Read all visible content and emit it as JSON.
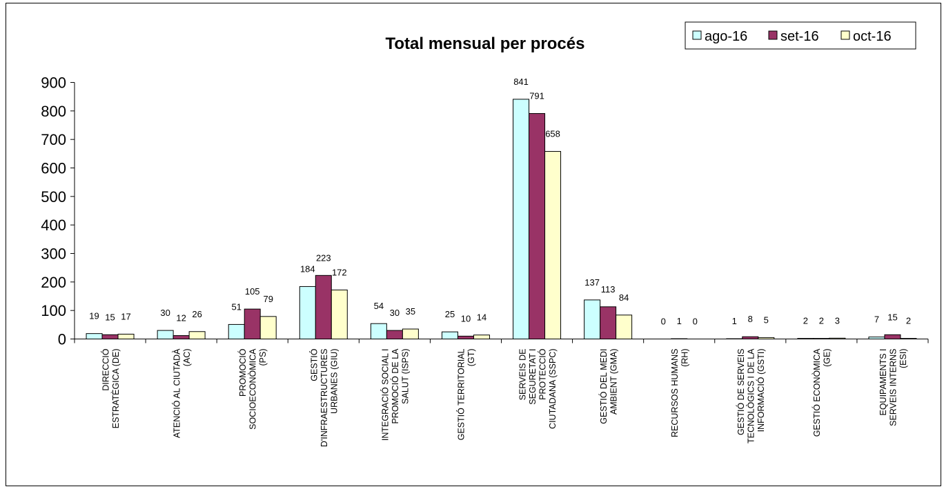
{
  "chart_data": {
    "type": "bar",
    "title": "Total mensual per procés",
    "ylim": [
      0,
      900
    ],
    "yticks": [
      0,
      100,
      200,
      300,
      400,
      500,
      600,
      700,
      800,
      900
    ],
    "grid": false,
    "legend_position": "top-right",
    "categories": [
      [
        "DIRECCIÓ",
        "ESTRATÈGICA (DE)"
      ],
      [
        "ATENCIÓ AL CIUTADÀ",
        "(AC)"
      ],
      [
        "PROMOCIÓ",
        "SOCIOECONÒMICA",
        "(PS)"
      ],
      [
        "GESTIÓ",
        "D'INFRAESTRUCTURES",
        "URBANES (GIU)"
      ],
      [
        "INTEGRACIÓ SOCIAL I",
        "PROMOCIÓ DE LA",
        "SALUT (ISPS)"
      ],
      [
        "GESTIÓ TERRITORIAL",
        "(GT)"
      ],
      [
        "SERVEIS DE",
        "SEGURETAT I",
        "PROTECCIÓ",
        "CIUTADANA (SSPC)"
      ],
      [
        "GESTIÓ DEL MEDI",
        "AMBIENT (GMA)"
      ],
      [
        "RECURSOS HUMANS",
        "(RH)"
      ],
      [
        "GESTIÓ DE SERVEIS",
        "TECNOLÒGICS I DE LA",
        "INFORMACIÓ (GSTI)"
      ],
      [
        "GESTIÓ ECONÒMICA",
        "(GE)"
      ],
      [
        "EQUIPAMENTS I",
        "SERVEIS INTERNS",
        "(ESI)"
      ]
    ],
    "series": [
      {
        "name": "ago-16",
        "color": "#ccffff",
        "values": [
          19,
          30,
          51,
          184,
          54,
          25,
          841,
          137,
          0,
          1,
          2,
          7
        ]
      },
      {
        "name": "set-16",
        "color": "#993366",
        "values": [
          15,
          12,
          105,
          223,
          30,
          10,
          791,
          113,
          1,
          8,
          2,
          15
        ]
      },
      {
        "name": "oct-16",
        "color": "#ffffcc",
        "values": [
          17,
          26,
          79,
          172,
          35,
          14,
          658,
          84,
          0,
          5,
          3,
          2
        ]
      }
    ]
  }
}
